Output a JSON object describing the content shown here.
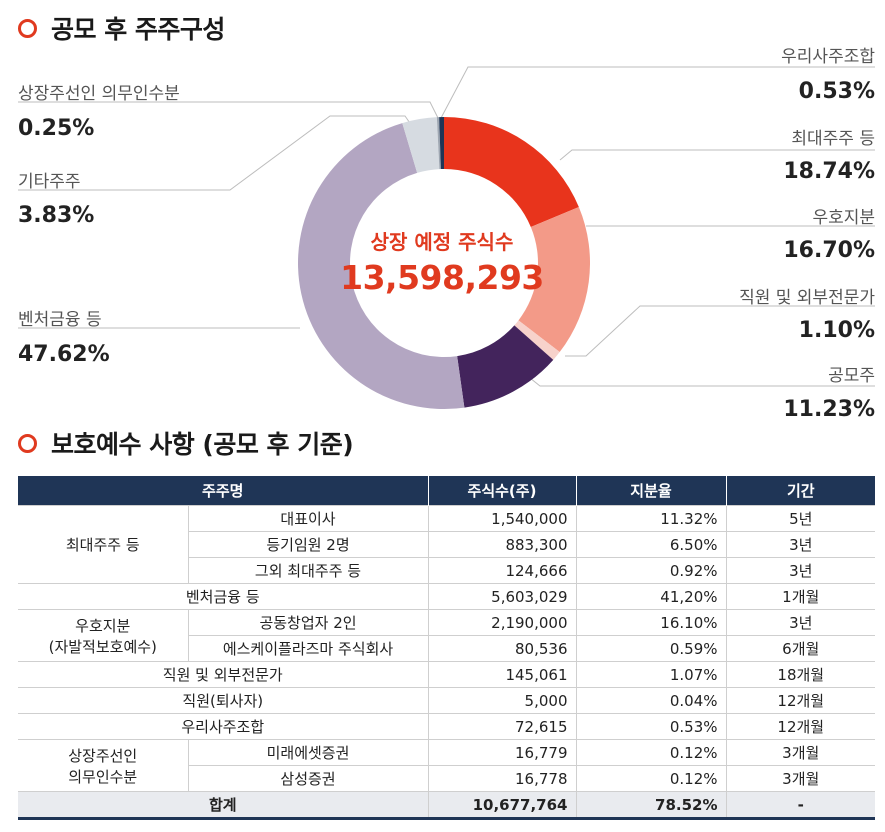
{
  "section1": {
    "title": "공모 후 주주구성"
  },
  "section2": {
    "title": "보호예수 사항 (공모 후 기준)"
  },
  "donut_center": {
    "label": "상장 예정 주식수",
    "value": "13,598,293"
  },
  "chart_data": {
    "type": "pie",
    "style": "donut",
    "segments": [
      {
        "label": "최대주주 등",
        "value": 18.74,
        "display": "18.74%",
        "color": "#e8341c"
      },
      {
        "label": "우호지분",
        "value": 16.7,
        "display": "16.70%",
        "color": "#f39a88"
      },
      {
        "label": "직원 및 외부전문가",
        "value": 1.1,
        "display": "1.10%",
        "color": "#f7d2cb"
      },
      {
        "label": "공모주",
        "value": 11.23,
        "display": "11.23%",
        "color": "#43245c"
      },
      {
        "label": "벤처금융 등",
        "value": 47.62,
        "display": "47.62%",
        "color": "#b3a6c2"
      },
      {
        "label": "기타주주",
        "value": 3.83,
        "display": "3.83%",
        "color": "#d6dbe1"
      },
      {
        "label": "상장주선인 의무인수분",
        "value": 0.25,
        "display": "0.25%",
        "color": "#9fa7b2"
      },
      {
        "label": "우리사주조합",
        "value": 0.53,
        "display": "0.53%",
        "color": "#1f3556"
      }
    ]
  },
  "table": {
    "headers": [
      "주주명",
      "주식수(주)",
      "지분율",
      "기간"
    ],
    "groups": {
      "g1": "최대주주 등",
      "g2_line1": "우호지분",
      "g2_line2": "(자발적보호예수)",
      "g3_line1": "상장주선인",
      "g3_line2": "의무인수분"
    },
    "rows": [
      {
        "name": "대표이사",
        "shares": "1,540,000",
        "ratio": "11.32%",
        "period": "5년"
      },
      {
        "name": "등기임원 2명",
        "shares": "883,300",
        "ratio": "6.50%",
        "period": "3년"
      },
      {
        "name": "그외 최대주주 등",
        "shares": "124,666",
        "ratio": "0.92%",
        "period": "3년"
      },
      {
        "name": "벤처금융 등",
        "shares": "5,603,029",
        "ratio": "41,20%",
        "period": "1개월"
      },
      {
        "name": "공동창업자 2인",
        "shares": "2,190,000",
        "ratio": "16.10%",
        "period": "3년"
      },
      {
        "name": "에스케이플라즈마 주식회사",
        "shares": "80,536",
        "ratio": "0.59%",
        "period": "6개월"
      },
      {
        "name": "직원 및 외부전문가",
        "shares": "145,061",
        "ratio": "1.07%",
        "period": "18개월"
      },
      {
        "name": "직원(퇴사자)",
        "shares": "5,000",
        "ratio": "0.04%",
        "period": "12개월"
      },
      {
        "name": "우리사주조합",
        "shares": "72,615",
        "ratio": "0.53%",
        "period": "12개월"
      },
      {
        "name": "미래에셋증권",
        "shares": "16,779",
        "ratio": "0.12%",
        "period": "3개월"
      },
      {
        "name": "삼성증권",
        "shares": "16,778",
        "ratio": "0.12%",
        "period": "3개월"
      }
    ],
    "total": {
      "name": "합계",
      "shares": "10,677,764",
      "ratio": "78.52%",
      "period": "-"
    }
  }
}
